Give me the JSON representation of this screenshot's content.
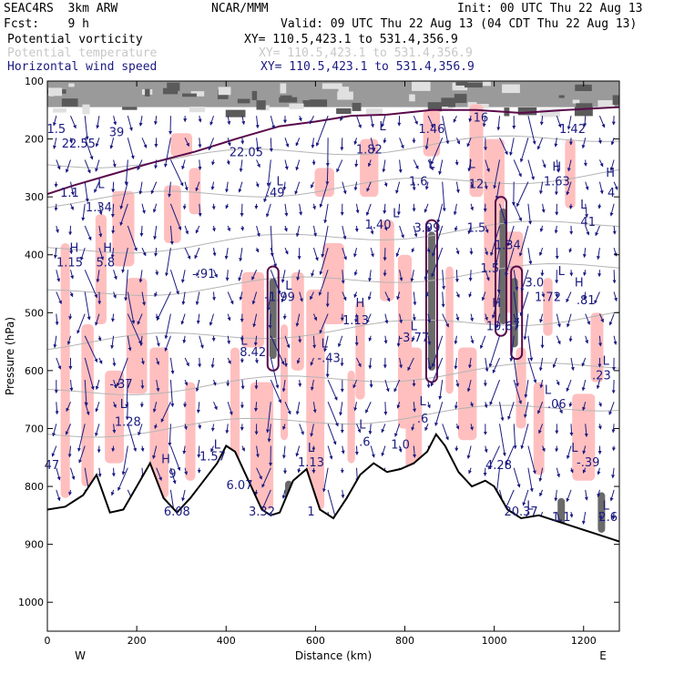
{
  "header": {
    "model": "SEAC4RS  3km ARW",
    "org": "NCAR/MMM",
    "init": "Init: 00 UTC Thu 22 Aug 13",
    "fcst": "Fcst:    9 h",
    "valid": "Valid: 09 UTC Thu 22 Aug 13 (04 CDT Thu 22 Aug 13)"
  },
  "fields": [
    {
      "name": "Potential vorticity",
      "xy": "XY= 110.5,423.1 to 531.4,356.9",
      "color": "#000000"
    },
    {
      "name": "Potential temperature",
      "xy": "XY= 110.5,423.1 to 531.4,356.9",
      "color": "#c8c8c8"
    },
    {
      "name": "Horizontal wind speed",
      "xy": "XY= 110.5,423.1 to 531.4,356.9",
      "color": "#1a1a80"
    }
  ],
  "chart_data": {
    "type": "cross-section",
    "xlabel": "Distance (km)",
    "ylabel": "Pressure (hPa)",
    "xlim": [
      0,
      1280
    ],
    "ylim": [
      100,
      1050
    ],
    "y_inverted": true,
    "x_ticks": [
      "0",
      "200",
      "400",
      "600",
      "800",
      "1000",
      "1200"
    ],
    "y_ticks": [
      "100",
      "200",
      "300",
      "400",
      "500",
      "600",
      "700",
      "800",
      "900",
      "1000"
    ],
    "end_labels": {
      "left": "W",
      "right": "E"
    },
    "colors": {
      "pv_fill": "#ffbfbf",
      "pv_contour": "#5a0a4a",
      "theta": "#b4b4b4",
      "wind": "#1a1a80",
      "terrain": "#000000"
    },
    "terrain_profile": [
      [
        0,
        840
      ],
      [
        40,
        835
      ],
      [
        80,
        815
      ],
      [
        110,
        780
      ],
      [
        140,
        845
      ],
      [
        170,
        840
      ],
      [
        200,
        800
      ],
      [
        230,
        760
      ],
      [
        260,
        820
      ],
      [
        290,
        845
      ],
      [
        320,
        820
      ],
      [
        350,
        790
      ],
      [
        380,
        760
      ],
      [
        400,
        730
      ],
      [
        420,
        740
      ],
      [
        450,
        790
      ],
      [
        480,
        840
      ],
      [
        500,
        850
      ],
      [
        520,
        845
      ],
      [
        550,
        790
      ],
      [
        580,
        770
      ],
      [
        610,
        840
      ],
      [
        640,
        855
      ],
      [
        670,
        820
      ],
      [
        700,
        780
      ],
      [
        730,
        760
      ],
      [
        760,
        775
      ],
      [
        790,
        770
      ],
      [
        820,
        760
      ],
      [
        850,
        740
      ],
      [
        870,
        710
      ],
      [
        890,
        730
      ],
      [
        920,
        775
      ],
      [
        950,
        800
      ],
      [
        980,
        790
      ],
      [
        1000,
        800
      ],
      [
        1030,
        840
      ],
      [
        1060,
        855
      ],
      [
        1100,
        850
      ],
      [
        1140,
        860
      ],
      [
        1180,
        870
      ],
      [
        1220,
        880
      ],
      [
        1260,
        890
      ],
      [
        1280,
        895
      ]
    ],
    "labels": [
      {
        "t": "1.5",
        "x": 20,
        "p": 190
      },
      {
        "t": "22.55",
        "x": 70,
        "p": 215
      },
      {
        "t": "39",
        "x": 155,
        "p": 195
      },
      {
        "t": "1.1",
        "x": 50,
        "p": 300
      },
      {
        "t": "1.34",
        "x": 115,
        "p": 325
      },
      {
        "t": "22.05",
        "x": 445,
        "p": 230
      },
      {
        "t": ".49",
        "x": 510,
        "p": 300
      },
      {
        "t": "1.82",
        "x": 720,
        "p": 225
      },
      {
        "t": "1.46",
        "x": 860,
        "p": 190
      },
      {
        "t": "1.6",
        "x": 830,
        "p": 280
      },
      {
        "t": "3.99",
        "x": 850,
        "p": 360
      },
      {
        "t": "12",
        "x": 960,
        "p": 285
      },
      {
        "t": "1.5",
        "x": 960,
        "p": 360
      },
      {
        "t": "1.34",
        "x": 1030,
        "p": 390
      },
      {
        "t": "1.42",
        "x": 1175,
        "p": 190
      },
      {
        "t": "1.63",
        "x": 1140,
        "p": 280
      },
      {
        "t": "41",
        "x": 1210,
        "p": 350
      },
      {
        "t": "4",
        "x": 1262,
        "p": 300
      },
      {
        "t": "1.15",
        "x": 50,
        "p": 420
      },
      {
        "t": "5.8",
        "x": 130,
        "p": 420
      },
      {
        "t": "-.91",
        "x": 350,
        "p": 440
      },
      {
        "t": "-1.99",
        "x": 520,
        "p": 480
      },
      {
        "t": "1.40",
        "x": 740,
        "p": 355
      },
      {
        "t": "1.13",
        "x": 690,
        "p": 520
      },
      {
        "t": "-3.77",
        "x": 820,
        "p": 550
      },
      {
        "t": "1.5",
        "x": 990,
        "p": 430
      },
      {
        "t": "1.72",
        "x": 1120,
        "p": 480
      },
      {
        "t": ".81",
        "x": 1205,
        "p": 485
      },
      {
        "t": "10.67",
        "x": 1020,
        "p": 530
      },
      {
        "t": "3.0",
        "x": 1090,
        "p": 455
      },
      {
        "t": "8.42",
        "x": 460,
        "p": 575
      },
      {
        "t": "-.43",
        "x": 630,
        "p": 585
      },
      {
        "t": "-.37",
        "x": 165,
        "p": 630
      },
      {
        "t": "1.28",
        "x": 180,
        "p": 695
      },
      {
        "t": ".23",
        "x": 1240,
        "p": 615
      },
      {
        "t": ".06",
        "x": 1140,
        "p": 665
      },
      {
        "t": ".6",
        "x": 840,
        "p": 690
      },
      {
        "t": "1.0",
        "x": 790,
        "p": 735
      },
      {
        "t": ".6",
        "x": 710,
        "p": 730
      },
      {
        "t": "1.57",
        "x": 370,
        "p": 755
      },
      {
        "t": "1.13",
        "x": 590,
        "p": 765
      },
      {
        "t": "-.39",
        "x": 1210,
        "p": 765
      },
      {
        "t": "4.28",
        "x": 1010,
        "p": 770
      },
      {
        "t": "6.07",
        "x": 430,
        "p": 805
      },
      {
        "t": "6.08",
        "x": 290,
        "p": 850
      },
      {
        "t": "3.32",
        "x": 480,
        "p": 850
      },
      {
        "t": "1",
        "x": 590,
        "p": 850
      },
      {
        "t": "20.37",
        "x": 1060,
        "p": 850
      },
      {
        "t": "9",
        "x": 280,
        "p": 785
      },
      {
        "t": "47",
        "x": 10,
        "p": 770
      },
      {
        "t": "1.1",
        "x": 1150,
        "p": 860
      },
      {
        "t": "2.6",
        "x": 1255,
        "p": 860
      },
      {
        "t": "16",
        "x": 970,
        "p": 170
      },
      {
        "t": "L",
        "x": 750,
        "p": 185
      },
      {
        "t": "H",
        "x": 1140,
        "p": 255
      },
      {
        "t": "H",
        "x": 1260,
        "p": 265
      },
      {
        "t": "L",
        "x": 1200,
        "p": 320
      },
      {
        "t": "L",
        "x": 540,
        "p": 460
      },
      {
        "t": "H",
        "x": 700,
        "p": 490
      },
      {
        "t": "H",
        "x": 1005,
        "p": 490
      },
      {
        "t": "L",
        "x": 1150,
        "p": 435
      },
      {
        "t": "H",
        "x": 1190,
        "p": 455
      },
      {
        "t": "H",
        "x": 60,
        "p": 395
      },
      {
        "t": "H",
        "x": 135,
        "p": 395
      },
      {
        "t": "L",
        "x": 120,
        "p": 285
      },
      {
        "t": "L",
        "x": 950,
        "p": 250
      },
      {
        "t": "L",
        "x": 860,
        "p": 250
      },
      {
        "t": "L",
        "x": 520,
        "p": 280
      },
      {
        "t": "L",
        "x": 780,
        "p": 335
      },
      {
        "t": "L",
        "x": 620,
        "p": 560
      },
      {
        "t": "L",
        "x": 1250,
        "p": 590
      },
      {
        "t": "L",
        "x": 1120,
        "p": 640
      },
      {
        "t": "L",
        "x": 170,
        "p": 665
      },
      {
        "t": "L",
        "x": 840,
        "p": 660
      },
      {
        "t": "L",
        "x": 705,
        "p": 700
      },
      {
        "t": "L",
        "x": 380,
        "p": 735
      },
      {
        "t": "L",
        "x": 590,
        "p": 740
      },
      {
        "t": "L",
        "x": 1180,
        "p": 740
      },
      {
        "t": "H",
        "x": 265,
        "p": 760
      },
      {
        "t": "L",
        "x": 440,
        "p": 555
      },
      {
        "t": "L",
        "x": 820,
        "p": 530
      },
      {
        "t": "L",
        "x": 1080,
        "p": 840
      },
      {
        "t": "L",
        "x": 1250,
        "p": 840
      }
    ]
  }
}
